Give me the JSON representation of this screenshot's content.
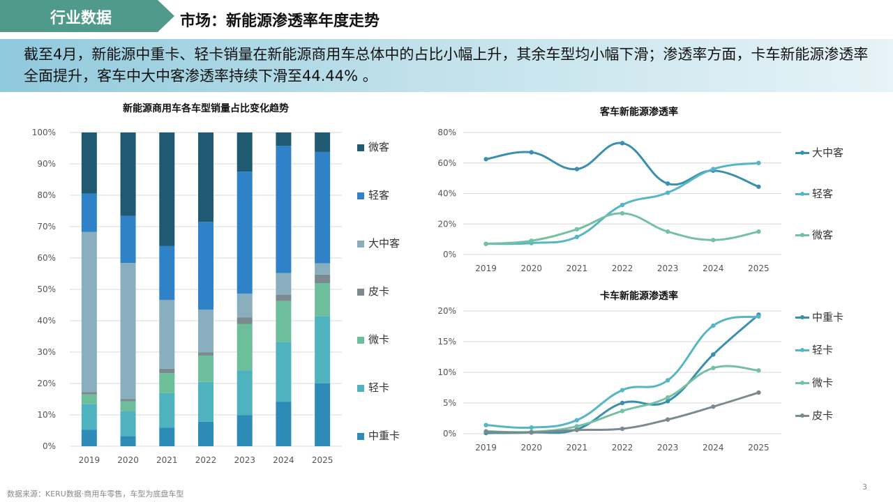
{
  "header": {
    "section_tag": "行业数据",
    "title": "市场：新能源渗透率年度走势"
  },
  "summary": {
    "text": "截至4月，新能源中重卡、轻卡销量在新能源商用车总体中的占比小幅上升，其余车型均小幅下滑；渗透率方面，卡车新能源渗透率全面提升，客车中大中客渗透率持续下滑至44.44% 。"
  },
  "footer": {
    "source": "数据来源：KERU数据·商用车零售，车型为底盘车型",
    "page_number": "3"
  },
  "colors": {
    "中重卡": "#2e8bb7",
    "轻卡": "#4fb3bf",
    "微卡": "#6dbf9b",
    "皮卡": "#7a8a8e",
    "大中客": "#89aebd",
    "轻客": "#2f82c7",
    "微客": "#1f5a72"
  },
  "chart_data": [
    {
      "id": "share",
      "type": "bar",
      "stacked": true,
      "title": "新能源商用车各车型销量占比变化趋势",
      "categories": [
        "2019",
        "2020",
        "2021",
        "2022",
        "2023",
        "2024",
        "2025"
      ],
      "ylim": [
        0,
        1
      ],
      "yticks": [
        "0%",
        "10%",
        "20%",
        "30%",
        "40%",
        "50%",
        "60%",
        "70%",
        "80%",
        "90%",
        "100%"
      ],
      "legend_position": "right",
      "series": [
        {
          "name": "中重卡",
          "color": "#2e8bb7",
          "values": [
            0.053,
            0.032,
            0.059,
            0.078,
            0.099,
            0.142,
            0.2
          ]
        },
        {
          "name": "轻卡",
          "color": "#4fb3bf",
          "values": [
            0.082,
            0.08,
            0.11,
            0.127,
            0.143,
            0.19,
            0.214
          ]
        },
        {
          "name": "微卡",
          "color": "#6dbf9b",
          "values": [
            0.03,
            0.031,
            0.064,
            0.084,
            0.148,
            0.131,
            0.106
          ]
        },
        {
          "name": "皮卡",
          "color": "#7a8a8e",
          "values": [
            0.008,
            0.007,
            0.014,
            0.01,
            0.02,
            0.02,
            0.027
          ]
        },
        {
          "name": "大中客",
          "color": "#89aebd",
          "values": [
            0.51,
            0.434,
            0.219,
            0.136,
            0.076,
            0.069,
            0.036
          ]
        },
        {
          "name": "轻客",
          "color": "#2f82c7",
          "values": [
            0.122,
            0.15,
            0.172,
            0.28,
            0.389,
            0.405,
            0.355
          ]
        },
        {
          "name": "微客",
          "color": "#1f5a72",
          "values": [
            0.195,
            0.266,
            0.362,
            0.285,
            0.125,
            0.043,
            0.062
          ]
        }
      ]
    },
    {
      "id": "bus",
      "type": "line",
      "smooth": true,
      "title": "客车新能源渗透率",
      "categories": [
        "2019",
        "2020",
        "2021",
        "2022",
        "2023",
        "2024",
        "2025"
      ],
      "ylim": [
        0,
        0.8
      ],
      "yticks": [
        "0%",
        "20%",
        "40%",
        "60%",
        "80%"
      ],
      "legend_position": "right",
      "series": [
        {
          "name": "大中客",
          "color": "#3a8fb0",
          "values": [
            0.625,
            0.67,
            0.56,
            0.73,
            0.465,
            0.55,
            0.4444
          ]
        },
        {
          "name": "轻客",
          "color": "#56b6c3",
          "values": [
            0.07,
            0.075,
            0.115,
            0.325,
            0.405,
            0.56,
            0.6
          ]
        },
        {
          "name": "微客",
          "color": "#74c0a2",
          "values": [
            0.07,
            0.09,
            0.165,
            0.27,
            0.15,
            0.095,
            0.15
          ]
        }
      ]
    },
    {
      "id": "truck",
      "type": "line",
      "smooth": true,
      "title": "卡车新能源渗透率",
      "categories": [
        "2019",
        "2020",
        "2021",
        "2022",
        "2023",
        "2024",
        "2025"
      ],
      "ylim": [
        0,
        0.2
      ],
      "yticks": [
        "0%",
        "5%",
        "10%",
        "15%",
        "20%"
      ],
      "legend_position": "right",
      "series": [
        {
          "name": "中重卡",
          "color": "#3a8fb0",
          "values": [
            0.001,
            0.002,
            0.007,
            0.05,
            0.053,
            0.129,
            0.194
          ]
        },
        {
          "name": "轻卡",
          "color": "#56b6c3",
          "values": [
            0.014,
            0.01,
            0.022,
            0.071,
            0.087,
            0.176,
            0.191
          ]
        },
        {
          "name": "微卡",
          "color": "#74c0a2",
          "values": [
            0.004,
            0.003,
            0.012,
            0.037,
            0.059,
            0.107,
            0.103
          ]
        },
        {
          "name": "皮卡",
          "color": "#7a8a8e",
          "values": [
            0.003,
            0.002,
            0.006,
            0.008,
            0.023,
            0.044,
            0.067
          ]
        }
      ]
    }
  ]
}
